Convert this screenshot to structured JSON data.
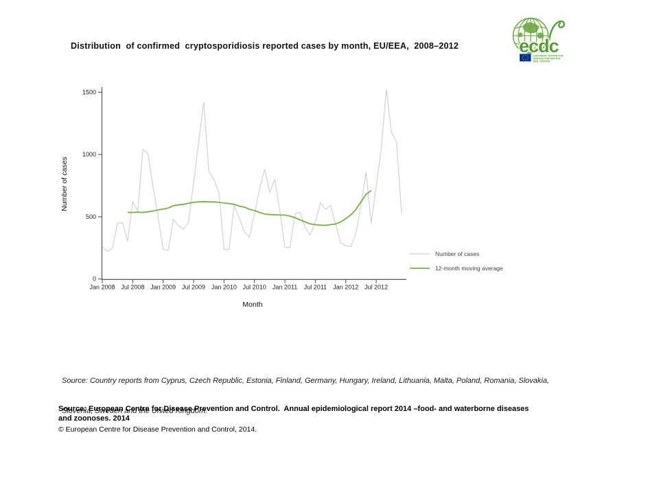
{
  "title": "Distribution  of confirmed  cryptosporidiosis reported cases by month, EU/EEA,  2008–2012",
  "logo": {
    "wordmark": "ecdc",
    "caption_lines": [
      "EUROPEAN CENTRE FOR",
      "DISEASE PREVENTION",
      "AND CONTROL"
    ],
    "green": "#56a033",
    "globe_green": "#63a33c",
    "flag_blue": "#003399",
    "flag_star_yellow": "#ffcc00"
  },
  "chart_data": {
    "type": "line",
    "title": "Distribution of confirmed cryptosporidiosis reported cases by month, EU/EEA, 2008–2012",
    "xlabel": "Month",
    "ylabel": "Number of cases",
    "x_start": "Jan 2008",
    "x_end": "Dec 2012",
    "months_total": 60,
    "ylim": [
      0,
      1550
    ],
    "y_ticks": [
      0,
      500,
      1000,
      1500
    ],
    "x_ticks": [
      {
        "i": 0,
        "label": "Jan 2008"
      },
      {
        "i": 6,
        "label": "Jul 2008"
      },
      {
        "i": 12,
        "label": "Jan 2009"
      },
      {
        "i": 18,
        "label": "Jul 2009"
      },
      {
        "i": 24,
        "label": "Jan 2010"
      },
      {
        "i": 30,
        "label": "Jul 2010"
      },
      {
        "i": 36,
        "label": "Jan 2011"
      },
      {
        "i": 42,
        "label": "Jul 2011"
      },
      {
        "i": 48,
        "label": "Jan 2012"
      },
      {
        "i": 54,
        "label": "Jul 2012"
      }
    ],
    "grid": false,
    "legend_position": "inside-right-lower",
    "series": [
      {
        "name": "Number of cases",
        "color": "#d2d2d0",
        "stroke_width": 1.2,
        "start_index": 0,
        "values": [
          260,
          222,
          248,
          450,
          452,
          305,
          620,
          545,
          1038,
          1007,
          740,
          500,
          240,
          230,
          480,
          430,
          400,
          455,
          775,
          1100,
          1420,
          865,
          800,
          690,
          238,
          235,
          590,
          490,
          380,
          335,
          520,
          720,
          885,
          695,
          800,
          550,
          255,
          252,
          525,
          535,
          412,
          354,
          460,
          614,
          559,
          590,
          440,
          293,
          266,
          260,
          366,
          600,
          860,
          447,
          750,
          1050,
          1525,
          1175,
          1105,
          527
        ]
      },
      {
        "name": "12-month moving average",
        "color": "#74b043",
        "stroke_width": 1.8,
        "start_index": 5,
        "values": [
          535,
          535,
          537,
          535,
          540,
          546,
          555,
          562,
          570,
          589,
          595,
          600,
          608,
          615,
          620,
          622,
          620,
          619,
          616,
          610,
          606,
          600,
          585,
          578,
          560,
          550,
          535,
          522,
          518,
          516,
          514,
          514,
          505,
          492,
          475,
          458,
          443,
          436,
          433,
          431,
          437,
          442,
          458,
          485,
          515,
          560,
          620,
          680,
          710
        ]
      }
    ]
  },
  "source_note": {
    "line1": "Source: Country reports from Cyprus, Czech Republic, Estonia, Finland, Germany, Hungary, Ireland, Lithuania, Malta, Poland, Romania, Slovakia,",
    "line2": "Slovenia, Sweden and the United Kingdom."
  },
  "citation": {
    "line1": "Source: European Centre for Disease Prevention and Control.  Annual epidemiological report 2014 –food- and waterborne diseases",
    "line2": "and zoonoses. 2014",
    "copyright": "© European Centre for Disease Prevention and Control, 2014."
  }
}
